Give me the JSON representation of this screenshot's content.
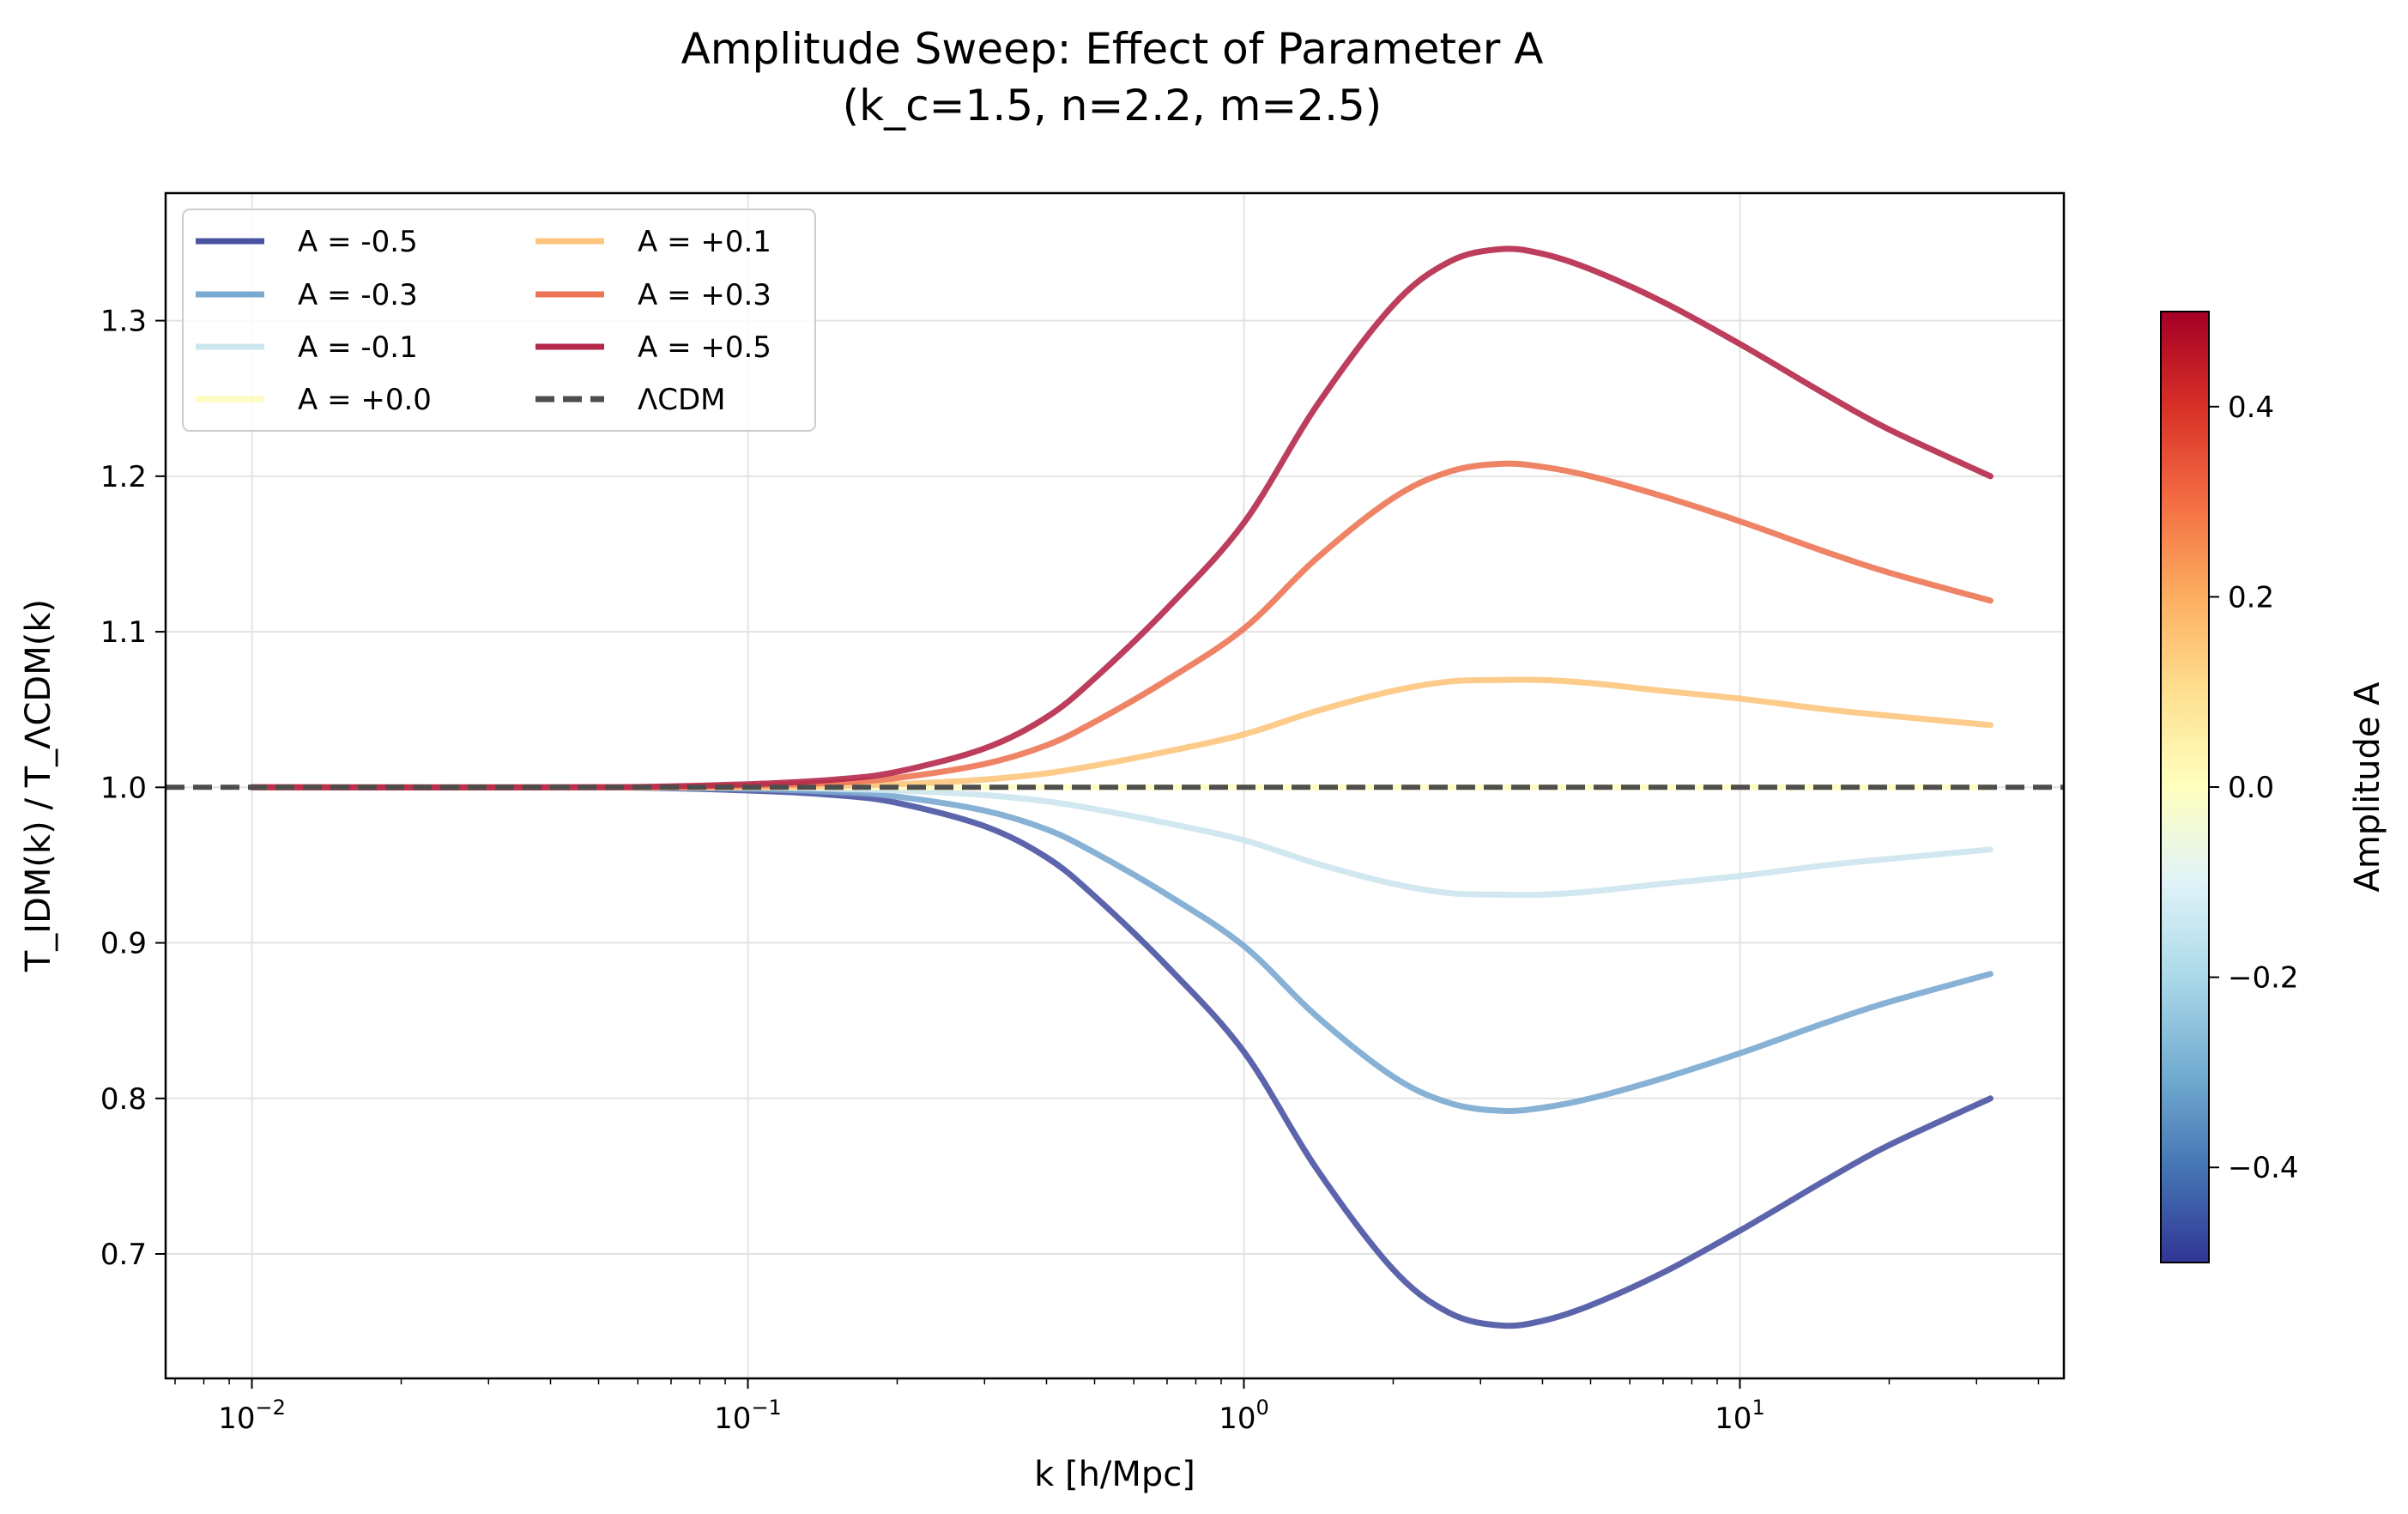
{
  "chart_data": {
    "type": "line",
    "title": "Amplitude Sweep: Effect of Parameter A",
    "subtitle": "(k_c=1.5, n=2.2, m=2.5)",
    "xlabel": "k [h/Mpc]",
    "ylabel": "T_IDM(k) / T_ΛCDM(k)",
    "xscale": "log",
    "xlim": [
      0.0067,
      45
    ],
    "ylim": [
      0.62,
      1.382
    ],
    "grid": true,
    "legend_position": "top-left",
    "x_ticks": [
      {
        "value": 0.01,
        "mant": "10",
        "exp": "−2"
      },
      {
        "value": 0.1,
        "mant": "10",
        "exp": "−1"
      },
      {
        "value": 1,
        "mant": "10",
        "exp": "0"
      },
      {
        "value": 10,
        "mant": "10",
        "exp": "1"
      }
    ],
    "y_ticks": [
      {
        "value": 0.7,
        "label": "0.7"
      },
      {
        "value": 0.8,
        "label": "0.8"
      },
      {
        "value": 0.9,
        "label": "0.9"
      },
      {
        "value": 1.0,
        "label": "1.0"
      },
      {
        "value": 1.1,
        "label": "1.1"
      },
      {
        "value": 1.2,
        "label": "1.2"
      },
      {
        "value": 1.3,
        "label": "1.3"
      }
    ],
    "x": [
      0.01,
      0.05,
      0.1,
      0.15,
      0.2,
      0.3,
      0.4,
      0.5,
      0.7,
      1.0,
      1.4,
      2.0,
      2.6,
      3.3,
      4.0,
      5.0,
      7.0,
      10.0,
      15.0,
      20.0,
      32.0
    ],
    "series": [
      {
        "name": "A = -0.5",
        "A": -0.5,
        "color": "#4a54a3",
        "values": [
          1.0,
          1.0,
          0.998,
          0.995,
          0.99,
          0.975,
          0.955,
          0.93,
          0.885,
          0.83,
          0.755,
          0.69,
          0.662,
          0.654,
          0.657,
          0.667,
          0.688,
          0.715,
          0.748,
          0.77,
          0.8
        ]
      },
      {
        "name": "A = -0.3",
        "A": -0.3,
        "color": "#7aa9d0",
        "values": [
          1.0,
          1.0,
          0.999,
          0.997,
          0.994,
          0.985,
          0.973,
          0.958,
          0.931,
          0.898,
          0.853,
          0.814,
          0.797,
          0.792,
          0.794,
          0.8,
          0.813,
          0.829,
          0.849,
          0.862,
          0.88
        ]
      },
      {
        "name": "A = -0.1",
        "A": -0.1,
        "color": "#cce6ef",
        "values": [
          1.0,
          1.0,
          1.0,
          0.999,
          0.998,
          0.995,
          0.991,
          0.986,
          0.977,
          0.966,
          0.951,
          0.938,
          0.932,
          0.931,
          0.931,
          0.933,
          0.938,
          0.943,
          0.95,
          0.954,
          0.96
        ]
      },
      {
        "name": "A = +0.0",
        "A": 0.0,
        "color": "#fefdc1",
        "values": [
          1.0,
          1.0,
          1.0,
          1.0,
          1.0,
          1.0,
          1.0,
          1.0,
          1.0,
          1.0,
          1.0,
          1.0,
          1.0,
          1.0,
          1.0,
          1.0,
          1.0,
          1.0,
          1.0,
          1.0,
          1.0
        ]
      },
      {
        "name": "A = +0.1",
        "A": 0.1,
        "color": "#fdc57d",
        "values": [
          1.0,
          1.0,
          1.0,
          1.001,
          1.002,
          1.005,
          1.009,
          1.014,
          1.023,
          1.034,
          1.049,
          1.062,
          1.068,
          1.069,
          1.069,
          1.067,
          1.062,
          1.057,
          1.05,
          1.046,
          1.04
        ]
      },
      {
        "name": "A = +0.3",
        "A": 0.3,
        "color": "#ec7555",
        "values": [
          1.0,
          1.0,
          1.001,
          1.003,
          1.006,
          1.015,
          1.027,
          1.042,
          1.069,
          1.102,
          1.147,
          1.186,
          1.203,
          1.208,
          1.206,
          1.2,
          1.187,
          1.171,
          1.151,
          1.138,
          1.12
        ]
      },
      {
        "name": "A = +0.5",
        "A": 0.5,
        "color": "#b5284a",
        "values": [
          1.0,
          1.0,
          1.002,
          1.005,
          1.01,
          1.025,
          1.045,
          1.07,
          1.115,
          1.17,
          1.245,
          1.31,
          1.338,
          1.346,
          1.343,
          1.333,
          1.312,
          1.285,
          1.252,
          1.23,
          1.2
        ]
      }
    ],
    "reference_line": {
      "name": "ΛCDM",
      "y": 1.0,
      "color": "#4d4d4d",
      "style": "dashed"
    },
    "colorbar": {
      "label": "Amplitude A",
      "range": [
        -0.5,
        0.5
      ],
      "colormap": "RdYlBu_r",
      "stops": [
        "#313695",
        "#4575b4",
        "#74add1",
        "#abd9e9",
        "#e0f3f8",
        "#ffffbf",
        "#fee090",
        "#fdae61",
        "#f46d43",
        "#d73027",
        "#a50026"
      ],
      "ticks": [
        {
          "value": -0.4,
          "label": "−0.4"
        },
        {
          "value": -0.2,
          "label": "−0.2"
        },
        {
          "value": 0.0,
          "label": "0.0"
        },
        {
          "value": 0.2,
          "label": "0.2"
        },
        {
          "value": 0.4,
          "label": "0.4"
        }
      ]
    }
  }
}
